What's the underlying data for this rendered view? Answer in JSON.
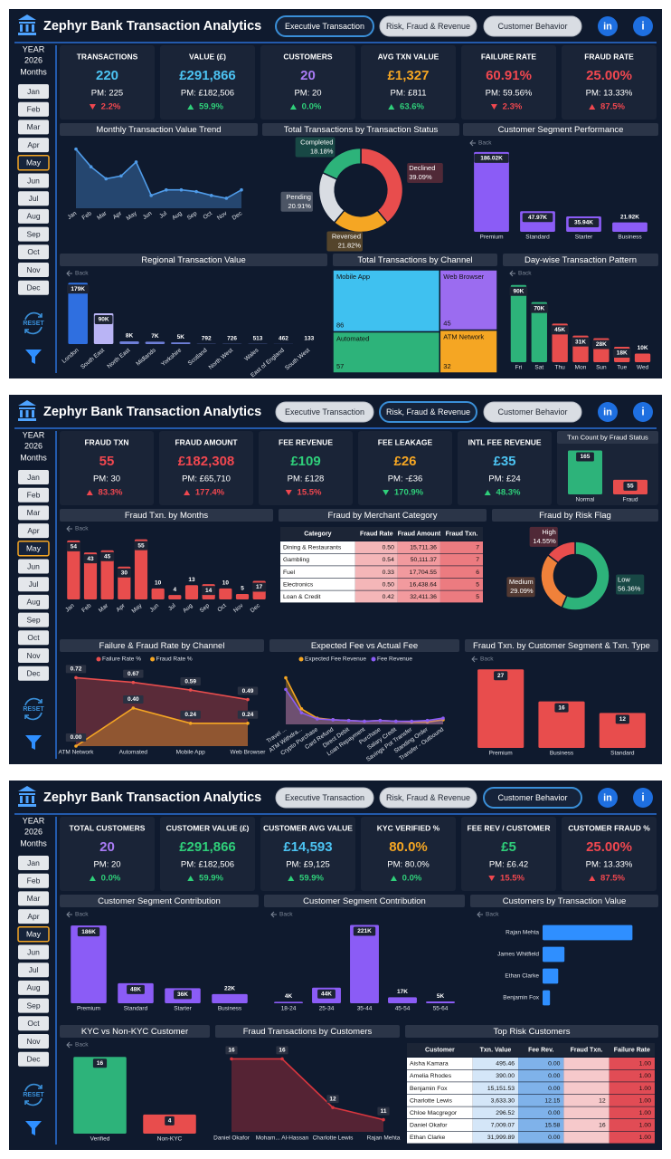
{
  "header": {
    "title": "Zephyr Bank Transaction Analytics",
    "tabs": [
      "Executive Transaction",
      "Risk, Fraud & Revenue",
      "Customer Behavior"
    ]
  },
  "icons": {
    "linkedin": "in",
    "info": "i"
  },
  "sidebar": {
    "year_label": "YEAR",
    "year": "2026",
    "months_label": "Months",
    "months": [
      "Jan",
      "Feb",
      "Mar",
      "Apr",
      "May",
      "Jun",
      "Jul",
      "Aug",
      "Sep",
      "Oct",
      "Nov",
      "Dec"
    ],
    "selected": "May",
    "reset_label": "RESET"
  },
  "back_label": "Back",
  "pages": [
    {
      "active_tab": 0,
      "kpis": [
        {
          "label": "TRANSACTIONS",
          "value": "220",
          "color": "#4cc3f2",
          "pm": "PM: 225",
          "change": "2.2%",
          "direction": "down",
          "change_color": "#f0474f"
        },
        {
          "label": "VALUE (£)",
          "value": "£291,866",
          "color": "#4cc3f2",
          "pm": "PM: £182,506",
          "change": "59.9%",
          "direction": "up",
          "change_color": "#2fcf7a"
        },
        {
          "label": "CUSTOMERS",
          "value": "20",
          "color": "#a97bf5",
          "pm": "PM: 20",
          "change": "0.0%",
          "direction": "up",
          "change_color": "#2fcf7a"
        },
        {
          "label": "AVG TXN VALUE",
          "value": "£1,327",
          "color": "#f5a623",
          "pm": "PM: £811",
          "change": "63.6%",
          "direction": "up",
          "change_color": "#2fcf7a"
        },
        {
          "label": "FAILURE RATE",
          "value": "60.91%",
          "color": "#f0474f",
          "pm": "PM: 59.56%",
          "change": "2.3%",
          "direction": "down",
          "change_color": "#f0474f"
        },
        {
          "label": "FRAUD RATE",
          "value": "25.00%",
          "color": "#f0474f",
          "pm": "PM: 13.33%",
          "change": "87.5%",
          "direction": "up",
          "change_color": "#f0474f"
        }
      ],
      "chart_data": [
        {
          "type": "area",
          "title": "Monthly Transaction Value Trend",
          "categories": [
            "Jan",
            "Feb",
            "Mar",
            "Apr",
            "May",
            "Jun",
            "Jul",
            "Aug",
            "Sep",
            "Oct",
            "Nov",
            "Dec"
          ],
          "values": [
            373000,
            262000,
            186000,
            204000,
            291866,
            81000,
            116000,
            116000,
            105000,
            81000,
            63000,
            116000
          ],
          "color": "#4f9be8",
          "ylim": [
            0,
            400000
          ]
        },
        {
          "type": "donut",
          "title": "Total Transactions by Transaction Status",
          "categories": [
            "Declined",
            "Reversed",
            "Pending",
            "Completed"
          ],
          "values": [
            39.09,
            21.82,
            20.91,
            18.18
          ],
          "value_labels": [
            "39.09%",
            "21.82%",
            "20.91%",
            "18.18%"
          ],
          "colors": [
            "#e84d4d",
            "#f5a623",
            "#d9dde3",
            "#2db37a"
          ]
        },
        {
          "type": "bar",
          "title": "Customer Segment Performance",
          "drill": true,
          "categories": [
            "Premium",
            "Standard",
            "Starter",
            "Business"
          ],
          "values": [
            186020,
            47970,
            35940,
            21920
          ],
          "value_labels": [
            "186.02K",
            "47.97K",
            "35.94K",
            "21.92K"
          ],
          "color": "#8b5cf6",
          "ylim": [
            0,
            190000
          ]
        },
        {
          "type": "bar",
          "title": "Regional Transaction Value",
          "drill": true,
          "categories": [
            "London",
            "South East",
            "North East",
            "Midlands",
            "Yorkshire",
            "Scotland",
            "North West",
            "Wales",
            "East of England",
            "South West"
          ],
          "values": [
            179000,
            90000,
            8000,
            7000,
            5000,
            792,
            726,
            513,
            462,
            133
          ],
          "value_labels": [
            "179K",
            "90K",
            "8K",
            "7K",
            "5K",
            "792",
            "726",
            "513",
            "462",
            "133"
          ],
          "colors": [
            "#2f6fe0",
            "#b9b4f5",
            "#6e7fd8",
            "#6e7fd8",
            "#6e7fd8",
            "#6e7fd8",
            "#6e7fd8",
            "#6e7fd8",
            "#6e7fd8",
            "#6e7fd8"
          ],
          "ylim": [
            0,
            185000
          ]
        },
        {
          "type": "treemap",
          "title": "Total Transactions by Channel",
          "categories": [
            "Mobile App",
            "Web Browser",
            "Automated",
            "ATM Network"
          ],
          "values": [
            86,
            45,
            57,
            32
          ],
          "colors": [
            "#3fc1f0",
            "#9b6cf0",
            "#2db37a",
            "#f5a623"
          ]
        },
        {
          "type": "bar",
          "title": "Day-wise Transaction Pattern",
          "drill": true,
          "categories": [
            "Fri",
            "Sat",
            "Thu",
            "Mon",
            "Sun",
            "Tue",
            "Wed"
          ],
          "values": [
            90000,
            70000,
            45000,
            31000,
            28000,
            18000,
            10000
          ],
          "value_labels": [
            "90K",
            "70K",
            "45K",
            "31K",
            "28K",
            "18K",
            "10K"
          ],
          "colors": [
            "#2db37a",
            "#2db37a",
            "#e84d4d",
            "#e84d4d",
            "#e84d4d",
            "#e84d4d",
            "#e84d4d"
          ],
          "ylim": [
            0,
            95000
          ]
        }
      ]
    },
    {
      "active_tab": 1,
      "kpis": [
        {
          "label": "FRAUD TXN",
          "value": "55",
          "color": "#f0474f",
          "pm": "PM: 30",
          "change": "83.3%",
          "direction": "up",
          "change_color": "#f0474f"
        },
        {
          "label": "FRAUD AMOUNT",
          "value": "£182,308",
          "color": "#f0474f",
          "pm": "PM: £65,710",
          "change": "177.4%",
          "direction": "up",
          "change_color": "#f0474f"
        },
        {
          "label": "FEE REVENUE",
          "value": "£109",
          "color": "#2fcf7a",
          "pm": "PM: £128",
          "change": "15.5%",
          "direction": "down",
          "change_color": "#f0474f"
        },
        {
          "label": "FEE LEAKAGE",
          "value": "£26",
          "color": "#f5a623",
          "pm": "PM: -£36",
          "change": "170.9%",
          "direction": "down",
          "change_color": "#2fcf7a"
        },
        {
          "label": "INTL FEE REVENUE",
          "value": "£35",
          "color": "#4cc3f2",
          "pm": "PM: £24",
          "change": "48.3%",
          "direction": "up",
          "change_color": "#2fcf7a"
        }
      ],
      "chart_data": [
        {
          "type": "bar",
          "title": "Txn Count by Fraud Status",
          "categories": [
            "Normal",
            "Fraud"
          ],
          "values": [
            165,
            55
          ],
          "colors": [
            "#2db37a",
            "#e84d4d"
          ],
          "ylim": [
            0,
            170
          ]
        },
        {
          "type": "bar",
          "title": "Fraud Txn. by Months",
          "drill": true,
          "categories": [
            "Jan",
            "Feb",
            "Mar",
            "Apr",
            "May",
            "Jun",
            "Jul",
            "Aug",
            "Sep",
            "Oct",
            "Nov",
            "Dec"
          ],
          "values": [
            54,
            43,
            45,
            30,
            55,
            10,
            4,
            13,
            14,
            10,
            5,
            17
          ],
          "color": "#e84d4d",
          "ylim": [
            0,
            58
          ]
        },
        {
          "type": "table",
          "title": "Fraud by Merchant Category",
          "columns": [
            "Category",
            "Fraud Rate",
            "Fraud Amount",
            "Fraud Txn."
          ],
          "column_colors": [
            "#ffffff",
            "#f4b6b8",
            "#f29a9e",
            "#ec7b80"
          ],
          "rows": [
            [
              "Dining & Restaurants",
              "0.50",
              "15,711.36",
              "7"
            ],
            [
              "Gambling",
              "0.54",
              "50,111.37",
              "7"
            ],
            [
              "Fuel",
              "0.33",
              "17,704.55",
              "6"
            ],
            [
              "Electronics",
              "0.50",
              "16,438.64",
              "5"
            ],
            [
              "Loan & Credit",
              "0.42",
              "32,411.36",
              "5"
            ]
          ]
        },
        {
          "type": "donut",
          "title": "Fraud by Risk Flag",
          "categories": [
            "Low",
            "Medium",
            "High"
          ],
          "values": [
            56.36,
            29.09,
            14.55
          ],
          "value_labels": [
            "56.36%",
            "29.09%",
            "14.55%"
          ],
          "colors": [
            "#2db37a",
            "#f0813a",
            "#e84d4d"
          ]
        },
        {
          "type": "line",
          "title": "Failure & Fraud Rate by Channel",
          "categories": [
            "ATM Network",
            "Automated",
            "Mobile App",
            "Web Browser"
          ],
          "series": [
            {
              "name": "Failure Rate %",
              "color": "#e84d4d",
              "values": [
                0.72,
                0.67,
                0.59,
                0.49
              ],
              "value_labels": [
                "0.72",
                "0.67",
                "0.59",
                "0.49"
              ]
            },
            {
              "name": "Fraud Rate %",
              "color": "#f5a623",
              "values": [
                0,
                0.4,
                0.24,
                0.24
              ],
              "value_labels": [
                "0.00",
                "0.40",
                "0.24",
                "0.24"
              ]
            }
          ],
          "ylim": [
            0,
            0.8
          ]
        },
        {
          "type": "line",
          "title": "Expected Fee vs Actual Fee",
          "categories": [
            "Travel ...",
            "ATM Withdra...",
            "Crypto Purchase",
            "Card Refund",
            "Direct Debit",
            "Loan Repayment",
            "Purchase",
            "Salary Credit",
            "Savings Pot Transfer",
            "Standing Order",
            "Transfer - Outbound"
          ],
          "series": [
            {
              "name": "Expected Fee Revenue",
              "color": "#f5a623",
              "values": [
                60,
                20,
                8,
                6,
                5,
                4,
                5,
                4,
                3,
                3,
                6
              ]
            },
            {
              "name": "Fee Revenue",
              "color": "#8b5cf6",
              "values": [
                45,
                15,
                7,
                6,
                5,
                4,
                5,
                4,
                4,
                5,
                8
              ]
            }
          ],
          "ylim": [
            0,
            70
          ]
        },
        {
          "type": "bar",
          "title": "Fraud Txn. by Customer Segment & Txn. Type",
          "drill": true,
          "categories": [
            "Premium",
            "Business",
            "Standard"
          ],
          "values": [
            27,
            16,
            12
          ],
          "color": "#e84d4d",
          "ylim": [
            0,
            28
          ]
        }
      ]
    },
    {
      "active_tab": 2,
      "kpis": [
        {
          "label": "TOTAL CUSTOMERS",
          "value": "20",
          "color": "#a97bf5",
          "pm": "PM: 20",
          "change": "0.0%",
          "direction": "up",
          "change_color": "#2fcf7a"
        },
        {
          "label": "CUSTOMER VALUE (£)",
          "value": "£291,866",
          "color": "#2fcf7a",
          "pm": "PM: £182,506",
          "change": "59.9%",
          "direction": "up",
          "change_color": "#2fcf7a"
        },
        {
          "label": "CUSTOMER AVG VALUE",
          "value": "£14,593",
          "color": "#4cc3f2",
          "pm": "PM: £9,125",
          "change": "59.9%",
          "direction": "up",
          "change_color": "#2fcf7a"
        },
        {
          "label": "KYC VERIFIED %",
          "value": "80.0%",
          "color": "#f5a623",
          "pm": "PM: 80.0%",
          "change": "0.0%",
          "direction": "up",
          "change_color": "#2fcf7a"
        },
        {
          "label": "FEE REV / CUSTOMER",
          "value": "£5",
          "color": "#2fcf7a",
          "pm": "PM: £6.42",
          "change": "15.5%",
          "direction": "down",
          "change_color": "#f0474f"
        },
        {
          "label": "CUSTOMER FRAUD %",
          "value": "25.00%",
          "color": "#f0474f",
          "pm": "PM: 13.33%",
          "change": "87.5%",
          "direction": "up",
          "change_color": "#f0474f"
        }
      ],
      "chart_data": [
        {
          "type": "bar",
          "title": "Customer Segment Contribution",
          "drill": true,
          "categories": [
            "Premium",
            "Standard",
            "Starter",
            "Business"
          ],
          "values": [
            186000,
            48000,
            36000,
            22000
          ],
          "value_labels": [
            "186K",
            "48K",
            "36K",
            "22K"
          ],
          "color": "#8b5cf6",
          "ylim": [
            0,
            195000
          ]
        },
        {
          "type": "bar",
          "title": "Customer Segment Contribution",
          "drill": true,
          "categories": [
            "18-24",
            "25-34",
            "35-44",
            "45-54",
            "55-64"
          ],
          "values": [
            4000,
            44000,
            221000,
            17000,
            5000
          ],
          "value_labels": [
            "4K",
            "44K",
            "221K",
            "17K",
            "5K"
          ],
          "color": "#8b5cf6",
          "ylim": [
            0,
            230000
          ]
        },
        {
          "type": "hbar",
          "title": "Customers by Transaction Value",
          "drill": true,
          "categories": [
            "Rajan Mehta",
            "James Whitfield",
            "Ethan Clarke",
            "Benjamin Fox"
          ],
          "values": [
            184000,
            44800,
            31999.89,
            15151.53
          ],
          "color": "#2f8fff",
          "xlim": [
            0,
            200000
          ]
        },
        {
          "type": "bar",
          "title": "KYC vs Non-KYC Customer",
          "drill": true,
          "categories": [
            "Verified",
            "Non-KYC"
          ],
          "values": [
            16,
            4
          ],
          "colors": [
            "#2db37a",
            "#e84d4d"
          ],
          "ylim": [
            0,
            17
          ]
        },
        {
          "type": "area",
          "title": "Fraud Transactions by Customers",
          "categories": [
            "Daniel Okafor",
            "Moham... Al-Hassan",
            "Charlotte Lewis",
            "Rajan Mehta"
          ],
          "values": [
            16,
            16,
            12,
            11
          ],
          "data_labels": true,
          "color": "#d9363e",
          "ylim": [
            10,
            17
          ]
        },
        {
          "type": "table",
          "title": "Top Risk Customers",
          "columns": [
            "Customer",
            "Txn. Value",
            "Fee Rev.",
            "Fraud Txn.",
            "Failure Rate"
          ],
          "column_colors": [
            "#ffffff",
            "#d4e6f8",
            "#7fb2ea",
            "#f6c9cb",
            "#e14c55"
          ],
          "rows": [
            [
              "Aisha Kamara",
              "495.46",
              "0.00",
              null,
              "1.00"
            ],
            [
              "Amelia Rhodes",
              "390.00",
              "0.00",
              null,
              "1.00"
            ],
            [
              "Benjamin Fox",
              "15,151.53",
              "0.00",
              null,
              "1.00"
            ],
            [
              "Charlotte Lewis",
              "3,633.30",
              "12.15",
              "12",
              "1.00"
            ],
            [
              "Chloe Macgregor",
              "296.52",
              "0.00",
              null,
              "1.00"
            ],
            [
              "Daniel Okafor",
              "7,009.07",
              "15.58",
              "16",
              "1.00"
            ],
            [
              "Ethan Clarke",
              "31,999.89",
              "0.00",
              null,
              "1.00"
            ],
            [
              "Fatima Noor",
              "1,421.81",
              "0.00",
              null,
              "1.00"
            ]
          ]
        }
      ]
    }
  ]
}
